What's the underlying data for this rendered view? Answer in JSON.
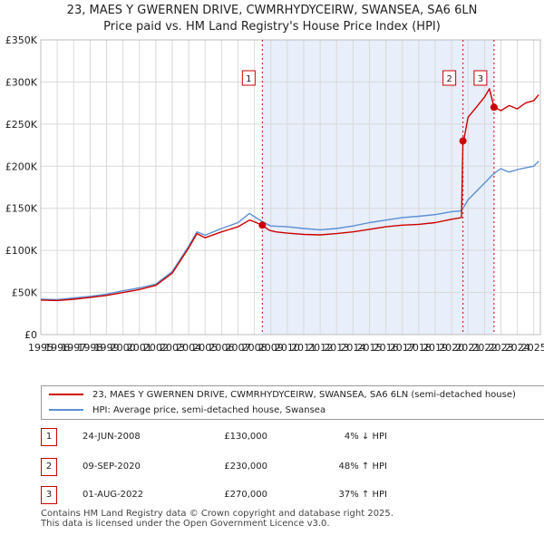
{
  "header": {
    "title": "23, MAES Y GWERNEN DRIVE, CWMRHYDYCEIRW, SWANSEA, SA6 6LN",
    "subtitle": "Price paid vs. HM Land Registry's House Price Index (HPI)"
  },
  "colors": {
    "property": "#cc0000",
    "hpi": "#5b8fd4",
    "shade": "#e8eefa",
    "grid": "#d9d9d9",
    "marker_line": "#cc0000"
  },
  "chart_data": {
    "type": "line",
    "title": "23, MAES Y GWERNEN DRIVE, CWMRHYDYCEIRW, SWANSEA, SA6 6LN",
    "xlabel": "",
    "ylabel": "",
    "xlim": [
      1995,
      2025.4
    ],
    "ylim": [
      0,
      350000
    ],
    "grid": true,
    "y_ticks": [
      0,
      50000,
      100000,
      150000,
      200000,
      250000,
      300000,
      350000
    ],
    "y_tick_labels": [
      "£0",
      "£50K",
      "£100K",
      "£150K",
      "£200K",
      "£250K",
      "£300K",
      "£350K"
    ],
    "x_ticks": [
      "1995",
      "1996",
      "1997",
      "1998",
      "1999",
      "2000",
      "2001",
      "2002",
      "2003",
      "2004",
      "2005",
      "2006",
      "2007",
      "2008",
      "2009",
      "2010",
      "2011",
      "2012",
      "2013",
      "2014",
      "2015",
      "2016",
      "2017",
      "2018",
      "2019",
      "2020",
      "2021",
      "2022",
      "2023",
      "2024",
      "2025"
    ],
    "shaded_period": [
      2008.48,
      2022.58
    ],
    "series": [
      {
        "name": "23, MAES Y GWERNEN DRIVE, CWMRHYDYCEIRW, SWANSEA, SA6 6LN (semi-detached house)",
        "color": "#cc0000",
        "x": [
          1995,
          1996,
          1997,
          1998,
          1999,
          2000,
          2001,
          2002,
          2003,
          2004,
          2004.5,
          2005,
          2006,
          2007,
          2007.7,
          2008,
          2008.48,
          2008.9,
          2009.3,
          2010,
          2011,
          2012,
          2013,
          2014,
          2015,
          2016,
          2017,
          2018,
          2019,
          2020,
          2020.6,
          2020.69,
          2020.75,
          2021,
          2021.5,
          2022,
          2022.3,
          2022.58,
          2022.8,
          2023,
          2023.5,
          2024,
          2024.5,
          2025,
          2025.3
        ],
        "values": [
          41000,
          40500,
          42000,
          44000,
          46500,
          50000,
          53500,
          58500,
          73000,
          103000,
          120000,
          115000,
          122000,
          128000,
          136000,
          134000,
          130000,
          124000,
          122000,
          120500,
          119000,
          118500,
          120000,
          122000,
          125000,
          128000,
          130000,
          131000,
          133000,
          137000,
          139000,
          230000,
          232000,
          258000,
          270000,
          282000,
          292000,
          270000,
          268000,
          266000,
          272000,
          268000,
          275000,
          278000,
          285000
        ]
      },
      {
        "name": "HPI: Average price, semi-detached house, Swansea",
        "color": "#5b8fd4",
        "x": [
          1995,
          1996,
          1997,
          1998,
          1999,
          2000,
          2001,
          2002,
          2003,
          2004,
          2004.5,
          2005,
          2006,
          2007,
          2007.7,
          2008,
          2008.5,
          2009,
          2010,
          2011,
          2012,
          2013,
          2014,
          2015,
          2016,
          2017,
          2018,
          2019,
          2020,
          2020.6,
          2021,
          2021.5,
          2022,
          2022.5,
          2022.9,
          2023,
          2023.5,
          2024,
          2024.5,
          2025,
          2025.3
        ],
        "values": [
          42000,
          41500,
          43500,
          45500,
          48000,
          52000,
          55500,
          60000,
          75000,
          105000,
          122000,
          118000,
          126000,
          133000,
          144000,
          140000,
          134000,
          129000,
          128000,
          126000,
          124500,
          126000,
          129000,
          133000,
          136000,
          139000,
          140500,
          142500,
          146000,
          147000,
          160000,
          170000,
          180000,
          190000,
          196000,
          197000,
          193000,
          196000,
          198000,
          200000,
          206000
        ]
      }
    ],
    "sale_markers": [
      {
        "label": "1",
        "x": 2008.48,
        "value": 130000
      },
      {
        "label": "2",
        "x": 2020.69,
        "value": 230000
      },
      {
        "label": "3",
        "x": 2022.58,
        "value": 270000
      }
    ]
  },
  "legend": {
    "property_label": "23, MAES Y GWERNEN DRIVE, CWMRHYDYCEIRW, SWANSEA, SA6 6LN (semi-detached house)",
    "hpi_label": "HPI: Average price, semi-detached house, Swansea"
  },
  "transactions": [
    {
      "num": "1",
      "date": "24-JUN-2008",
      "price": "£130,000",
      "hpi": "4% ↓ HPI"
    },
    {
      "num": "2",
      "date": "09-SEP-2020",
      "price": "£230,000",
      "hpi": "48% ↑ HPI"
    },
    {
      "num": "3",
      "date": "01-AUG-2022",
      "price": "£270,000",
      "hpi": "37% ↑ HPI"
    }
  ],
  "footer": {
    "line1": "Contains HM Land Registry data © Crown copyright and database right 2025.",
    "line2": "This data is licensed under the Open Government Licence v3.0."
  }
}
